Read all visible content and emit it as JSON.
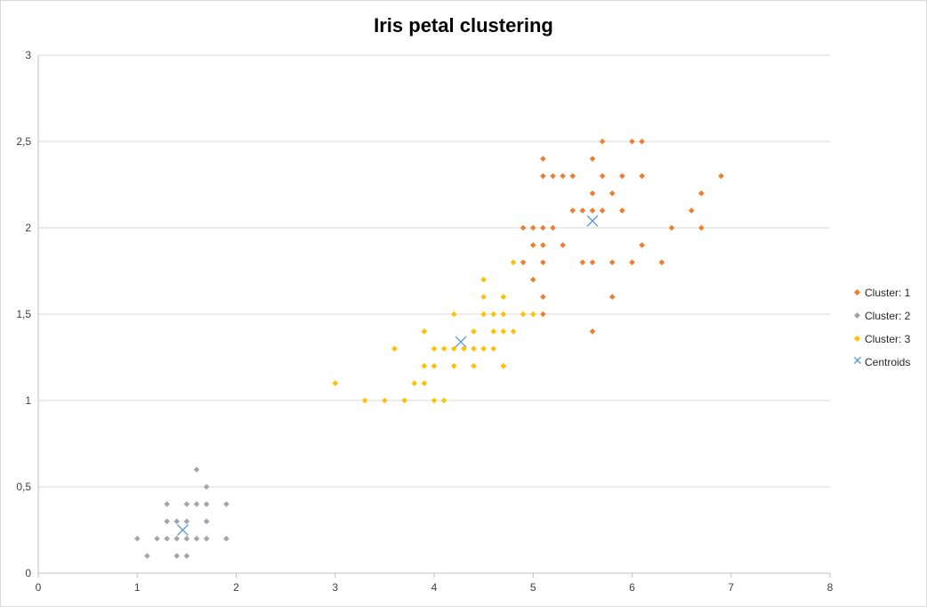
{
  "chart_data": {
    "type": "scatter",
    "title": "Iris petal clustering",
    "xlabel": "",
    "ylabel": "",
    "xlim": [
      0,
      8
    ],
    "ylim": [
      0,
      3
    ],
    "x_ticks": [
      "0",
      "1",
      "2",
      "3",
      "4",
      "5",
      "6",
      "7",
      "8"
    ],
    "y_ticks": [
      "0",
      "0,5",
      "1",
      "1,5",
      "2",
      "2,5",
      "3"
    ],
    "grid": "horizontal",
    "legend_position": "right",
    "series": [
      {
        "name": "Cluster: 1",
        "color": "#ed7d31",
        "marker": "diamond",
        "points": [
          [
            5.7,
            2.5
          ],
          [
            6.0,
            2.5
          ],
          [
            6.1,
            2.5
          ],
          [
            5.1,
            2.4
          ],
          [
            5.6,
            2.4
          ],
          [
            5.1,
            2.3
          ],
          [
            5.2,
            2.3
          ],
          [
            5.3,
            2.3
          ],
          [
            5.4,
            2.3
          ],
          [
            5.7,
            2.3
          ],
          [
            5.9,
            2.3
          ],
          [
            6.1,
            2.3
          ],
          [
            6.9,
            2.3
          ],
          [
            5.6,
            2.2
          ],
          [
            5.8,
            2.2
          ],
          [
            6.7,
            2.2
          ],
          [
            5.4,
            2.1
          ],
          [
            5.5,
            2.1
          ],
          [
            5.6,
            2.1
          ],
          [
            5.7,
            2.1
          ],
          [
            5.9,
            2.1
          ],
          [
            6.6,
            2.1
          ],
          [
            4.9,
            2.0
          ],
          [
            5.0,
            2.0
          ],
          [
            5.1,
            2.0
          ],
          [
            5.2,
            2.0
          ],
          [
            6.4,
            2.0
          ],
          [
            6.7,
            2.0
          ],
          [
            5.0,
            1.9
          ],
          [
            5.1,
            1.9
          ],
          [
            5.3,
            1.9
          ],
          [
            6.1,
            1.9
          ],
          [
            4.9,
            1.8
          ],
          [
            5.1,
            1.8
          ],
          [
            5.5,
            1.8
          ],
          [
            5.6,
            1.8
          ],
          [
            5.8,
            1.8
          ],
          [
            6.0,
            1.8
          ],
          [
            6.3,
            1.8
          ],
          [
            5.0,
            1.7
          ],
          [
            5.1,
            1.6
          ],
          [
            5.8,
            1.6
          ],
          [
            5.1,
            1.5
          ],
          [
            5.6,
            1.4
          ]
        ]
      },
      {
        "name": "Cluster: 2",
        "color": "#a5a5a5",
        "marker": "diamond",
        "points": [
          [
            1.6,
            0.6
          ],
          [
            1.7,
            0.5
          ],
          [
            1.3,
            0.4
          ],
          [
            1.5,
            0.4
          ],
          [
            1.6,
            0.4
          ],
          [
            1.7,
            0.4
          ],
          [
            1.9,
            0.4
          ],
          [
            1.3,
            0.3
          ],
          [
            1.4,
            0.3
          ],
          [
            1.5,
            0.3
          ],
          [
            1.7,
            0.3
          ],
          [
            1.0,
            0.2
          ],
          [
            1.2,
            0.2
          ],
          [
            1.3,
            0.2
          ],
          [
            1.4,
            0.2
          ],
          [
            1.5,
            0.2
          ],
          [
            1.6,
            0.2
          ],
          [
            1.7,
            0.2
          ],
          [
            1.9,
            0.2
          ],
          [
            1.1,
            0.1
          ],
          [
            1.4,
            0.1
          ],
          [
            1.5,
            0.1
          ]
        ]
      },
      {
        "name": "Cluster: 3",
        "color": "#ffc000",
        "marker": "diamond",
        "points": [
          [
            4.8,
            1.8
          ],
          [
            4.5,
            1.7
          ],
          [
            4.5,
            1.6
          ],
          [
            4.7,
            1.6
          ],
          [
            4.2,
            1.5
          ],
          [
            4.5,
            1.5
          ],
          [
            4.6,
            1.5
          ],
          [
            4.7,
            1.5
          ],
          [
            4.9,
            1.5
          ],
          [
            5.0,
            1.5
          ],
          [
            3.9,
            1.4
          ],
          [
            4.4,
            1.4
          ],
          [
            4.6,
            1.4
          ],
          [
            4.7,
            1.4
          ],
          [
            4.8,
            1.4
          ],
          [
            3.6,
            1.3
          ],
          [
            4.0,
            1.3
          ],
          [
            4.1,
            1.3
          ],
          [
            4.2,
            1.3
          ],
          [
            4.3,
            1.3
          ],
          [
            4.4,
            1.3
          ],
          [
            4.5,
            1.3
          ],
          [
            4.6,
            1.3
          ],
          [
            3.9,
            1.2
          ],
          [
            4.0,
            1.2
          ],
          [
            4.2,
            1.2
          ],
          [
            4.4,
            1.2
          ],
          [
            4.7,
            1.2
          ],
          [
            3.0,
            1.1
          ],
          [
            3.8,
            1.1
          ],
          [
            3.9,
            1.1
          ],
          [
            3.3,
            1.0
          ],
          [
            3.5,
            1.0
          ],
          [
            3.7,
            1.0
          ],
          [
            4.0,
            1.0
          ],
          [
            4.1,
            1.0
          ]
        ]
      },
      {
        "name": "Centroids",
        "color": "#5b9bd5",
        "marker": "x",
        "points": [
          [
            5.6,
            2.04
          ],
          [
            1.46,
            0.25
          ],
          [
            4.27,
            1.34
          ]
        ]
      }
    ]
  }
}
